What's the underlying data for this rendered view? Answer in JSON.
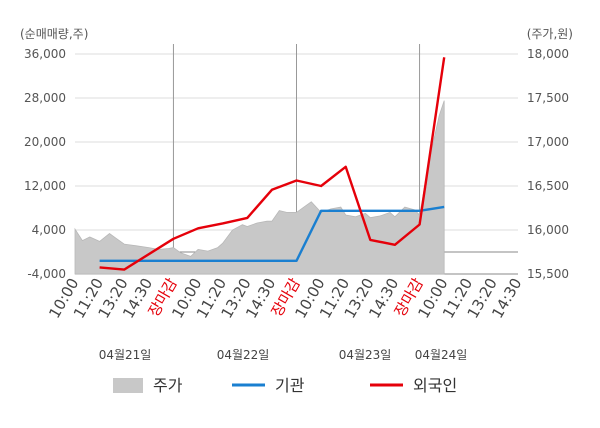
{
  "chart_data": {
    "type": "line",
    "left_axis": {
      "label": "(순매매량,주)",
      "ticks": [
        "36,000",
        "28,000",
        "20,000",
        "12,000",
        "4,000",
        "-4,000"
      ],
      "range": [
        -4000,
        36000
      ]
    },
    "right_axis": {
      "label": "(주가,원)",
      "ticks": [
        "18,000",
        "17,500",
        "17,000",
        "16,500",
        "16,000",
        "15,500"
      ],
      "range": [
        15500,
        18000
      ]
    },
    "x_ticks": [
      {
        "label": "10:00",
        "red": false
      },
      {
        "label": "11:20",
        "red": false
      },
      {
        "label": "13:20",
        "red": false
      },
      {
        "label": "14:30",
        "red": false
      },
      {
        "label": "장마감",
        "red": true
      },
      {
        "label": "10:00",
        "red": false
      },
      {
        "label": "11:20",
        "red": false
      },
      {
        "label": "13:20",
        "red": false
      },
      {
        "label": "14:30",
        "red": false
      },
      {
        "label": "장마감",
        "red": true
      },
      {
        "label": "10:00",
        "red": false
      },
      {
        "label": "11:20",
        "red": false
      },
      {
        "label": "13:20",
        "red": false
      },
      {
        "label": "14:30",
        "red": false
      },
      {
        "label": "장마감",
        "red": true
      },
      {
        "label": "10:00",
        "red": false
      },
      {
        "label": "11:20",
        "red": false
      },
      {
        "label": "13:20",
        "red": false
      },
      {
        "label": "14:30",
        "red": false
      }
    ],
    "date_labels": [
      "04월21일",
      "04월22일",
      "04월23일",
      "04월24일"
    ],
    "legend": {
      "price": "주가",
      "institution": "기관",
      "foreign": "외국인"
    },
    "colors": {
      "price": "#c8c8c8",
      "institution": "#1a7fd0",
      "foreign": "#e5000a",
      "grid": "#dddddd",
      "axis": "#888888"
    },
    "series": [
      {
        "name": "기관",
        "axis": "left",
        "x": [
          1,
          4,
          5,
          9,
          10,
          13,
          14,
          15
        ],
        "values": [
          -1600,
          -1600,
          -1600,
          -1600,
          7500,
          7500,
          7500,
          8200
        ]
      },
      {
        "name": "외국인",
        "axis": "left",
        "x": [
          1,
          2,
          4,
          5,
          6,
          7,
          8,
          9,
          10,
          11,
          12,
          13,
          14,
          15
        ],
        "values": [
          -2800,
          -3200,
          2400,
          4300,
          5200,
          6200,
          11300,
          13000,
          12000,
          15500,
          2200,
          1300,
          5000,
          35400
        ]
      },
      {
        "name": "주가",
        "axis": "right",
        "x": [
          0,
          0.3,
          0.6,
          1,
          1.4,
          1.7,
          2,
          2.5,
          3,
          3.4,
          3.8,
          4,
          4.3,
          4.7,
          5,
          5.4,
          5.8,
          6,
          6.4,
          6.8,
          7,
          7.4,
          7.8,
          8,
          8.3,
          8.6,
          9,
          9.3,
          9.6,
          10,
          10.4,
          10.8,
          11,
          11.4,
          11.8,
          12,
          12.4,
          12.8,
          13,
          13.4,
          13.8,
          14,
          14.1,
          14.3,
          14.6,
          14.8,
          15
        ],
        "values": [
          16010,
          15880,
          15920,
          15870,
          15960,
          15900,
          15840,
          15820,
          15800,
          15780,
          15790,
          15800,
          15740,
          15700,
          15780,
          15760,
          15800,
          15850,
          16000,
          16060,
          16040,
          16080,
          16100,
          16100,
          16220,
          16200,
          16200,
          16260,
          16320,
          16200,
          16240,
          16260,
          16170,
          16150,
          16190,
          16140,
          16160,
          16200,
          16150,
          16260,
          16230,
          16170,
          16320,
          16650,
          17050,
          17300,
          17470
        ]
      }
    ]
  }
}
